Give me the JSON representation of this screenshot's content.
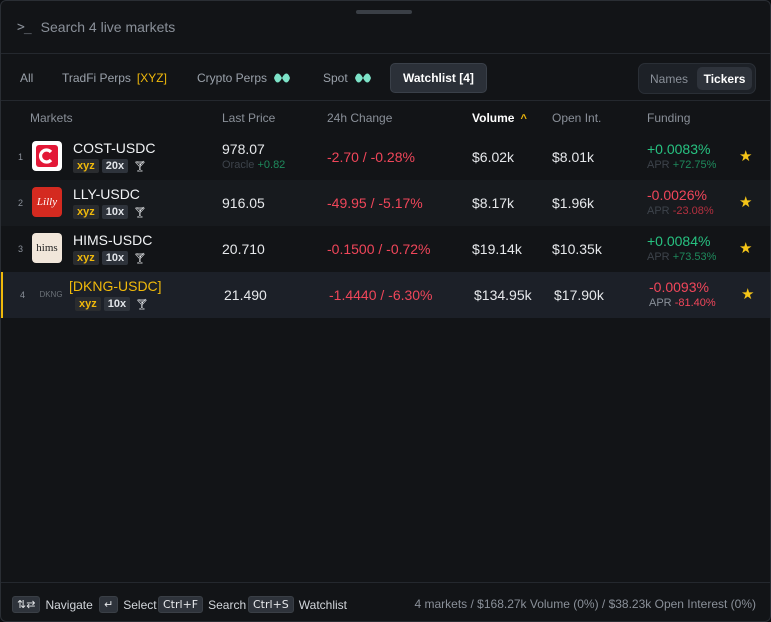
{
  "search": {
    "placeholder": "Search 4 live markets"
  },
  "tabs": [
    {
      "label": "All"
    },
    {
      "label": "TradFi Perps",
      "tag": "[XYZ]"
    },
    {
      "label": "Crypto Perps"
    },
    {
      "label": "Spot"
    },
    {
      "label": "Watchlist [4]"
    }
  ],
  "view_toggle": {
    "names": "Names",
    "tickers": "Tickers",
    "selected": "Tickers"
  },
  "columns": {
    "markets": "Markets",
    "last_price": "Last Price",
    "change": "24h Change",
    "volume": "Volume",
    "open_interest": "Open Int.",
    "funding": "Funding"
  },
  "rows": [
    {
      "index": "1",
      "logo": "cost-logo",
      "symbol": "COST-USDC",
      "badge": "xyz",
      "leverage": "20x",
      "price": "978.07",
      "oracle_label": "Oracle",
      "oracle_change": "+0.82",
      "change": "-2.70 / -0.28%",
      "volume": "$6.02k",
      "open_interest": "$8.01k",
      "funding": "+0.0083%",
      "apr_label": "APR",
      "apr": "+72.75%"
    },
    {
      "index": "2",
      "logo": "lly-logo",
      "logo_text": "Lilly",
      "symbol": "LLY-USDC",
      "badge": "xyz",
      "leverage": "10x",
      "price": "916.05",
      "change": "-49.95 / -5.17%",
      "volume": "$8.17k",
      "open_interest": "$1.96k",
      "funding": "-0.0026%",
      "apr_label": "APR",
      "apr": "-23.08%"
    },
    {
      "index": "3",
      "logo": "hims-logo",
      "logo_text": "hims",
      "symbol": "HIMS-USDC",
      "badge": "xyz",
      "leverage": "10x",
      "price": "20.710",
      "change": "-0.1500 / -0.72%",
      "volume": "$19.14k",
      "open_interest": "$10.35k",
      "funding": "+0.0084%",
      "apr_label": "APR",
      "apr": "+73.53%"
    },
    {
      "index": "4",
      "logo": "dkng-logo",
      "logo_text": "DKNG",
      "symbol": "[DKNG-USDC]",
      "badge": "xyz",
      "leverage": "10x",
      "price": "21.490",
      "change": "-1.4440 / -6.30%",
      "volume": "$134.95k",
      "open_interest": "$17.90k",
      "funding": "-0.0093%",
      "apr_label": "APR",
      "apr": "-81.40%"
    }
  ],
  "footer": {
    "navigate_key": "⇅⇄",
    "navigate_label": "Navigate",
    "select_key": "↵",
    "select_label": "Select",
    "search_key": "Ctrl+F",
    "search_label": "Search",
    "watchlist_key": "Ctrl+S",
    "watchlist_label": "Watchlist",
    "summary": "4 markets / $168.27k Volume (0%) / $38.23k Open Interest (0%)"
  },
  "colors": {
    "accent": "#f0b90b",
    "positive": "#27c281",
    "negative": "#f0465a",
    "star": "#f5c518"
  }
}
